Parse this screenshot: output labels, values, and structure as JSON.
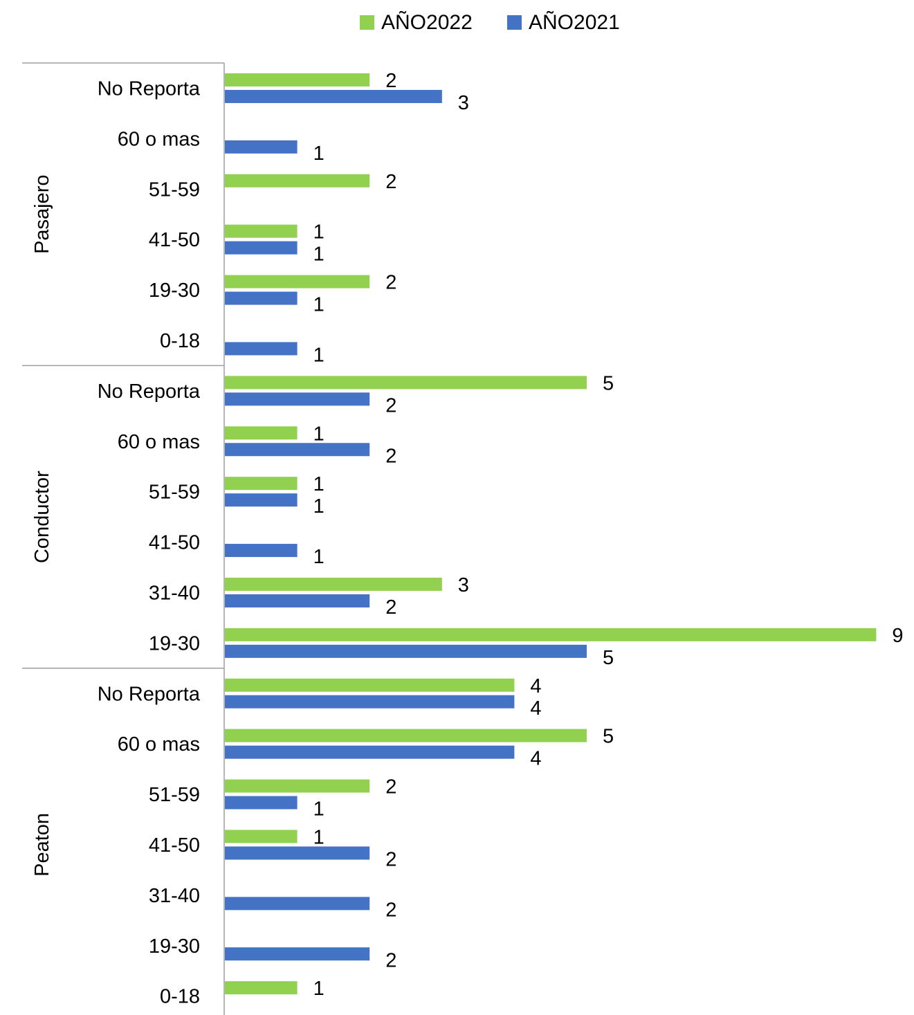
{
  "chart_data": {
    "type": "bar",
    "orientation": "horizontal",
    "title": "",
    "xlabel": "",
    "ylabel": "",
    "xlim": [
      0,
      9
    ],
    "grid": false,
    "legend_position": "top",
    "series": [
      {
        "name": "AÑO2022",
        "color": "#92D050"
      },
      {
        "name": "AÑO2021",
        "color": "#4472C4"
      }
    ],
    "groups": [
      {
        "name": "Pasajero",
        "categories": [
          {
            "label": "No Reporta",
            "values": [
              2,
              3
            ]
          },
          {
            "label": "60 o mas",
            "values": [
              null,
              1
            ]
          },
          {
            "label": "51-59",
            "values": [
              2,
              null
            ]
          },
          {
            "label": "41-50",
            "values": [
              1,
              1
            ]
          },
          {
            "label": "19-30",
            "values": [
              2,
              1
            ]
          },
          {
            "label": "0-18",
            "values": [
              null,
              1
            ]
          }
        ]
      },
      {
        "name": "Conductor",
        "categories": [
          {
            "label": "No Reporta",
            "values": [
              5,
              2
            ]
          },
          {
            "label": "60 o mas",
            "values": [
              1,
              2
            ]
          },
          {
            "label": "51-59",
            "values": [
              1,
              1
            ]
          },
          {
            "label": "41-50",
            "values": [
              null,
              1
            ]
          },
          {
            "label": "31-40",
            "values": [
              3,
              2
            ]
          },
          {
            "label": "19-30",
            "values": [
              9,
              5
            ]
          }
        ]
      },
      {
        "name": "Peaton",
        "categories": [
          {
            "label": "No Reporta",
            "values": [
              4,
              4
            ]
          },
          {
            "label": "60 o mas",
            "values": [
              5,
              4
            ]
          },
          {
            "label": "51-59",
            "values": [
              2,
              1
            ]
          },
          {
            "label": "41-50",
            "values": [
              1,
              2
            ]
          },
          {
            "label": "31-40",
            "values": [
              null,
              2
            ]
          },
          {
            "label": "19-30",
            "values": [
              null,
              2
            ]
          },
          {
            "label": "0-18",
            "values": [
              1,
              null
            ]
          }
        ]
      }
    ]
  }
}
